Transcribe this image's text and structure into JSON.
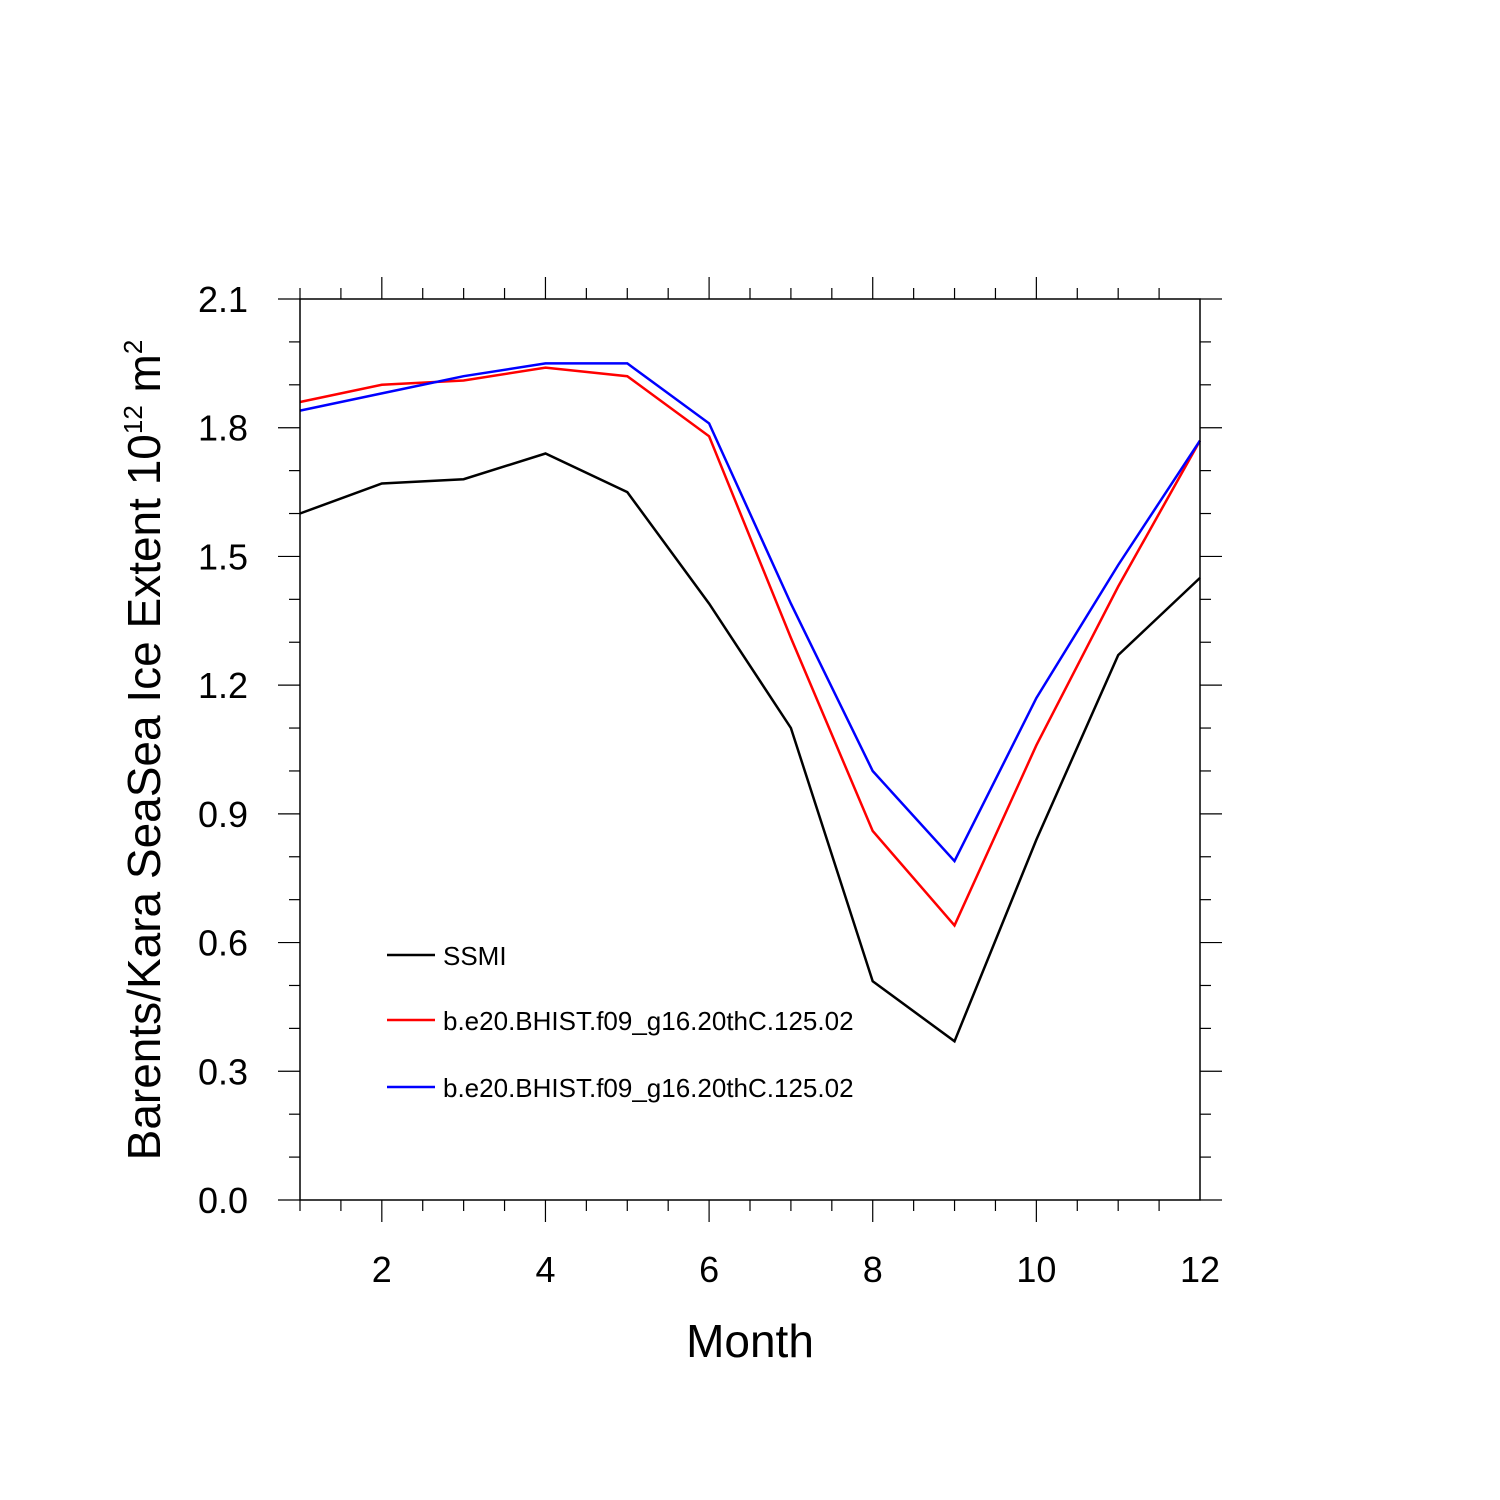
{
  "chart_data": {
    "type": "line",
    "xlabel": "Month",
    "ylabel": {
      "prefix": "Barents/Kara SeaSea Ice Extent 10",
      "superscript_1": "12",
      "middle": " m",
      "superscript_2": "2"
    },
    "xlim": [
      1,
      12
    ],
    "ylim": [
      0.0,
      2.1
    ],
    "xticks": [
      2,
      4,
      6,
      8,
      10,
      12
    ],
    "yticks": [
      "0.0",
      "0.3",
      "0.6",
      "0.9",
      "1.2",
      "1.5",
      "1.8",
      "2.1"
    ],
    "x": [
      1,
      2,
      3,
      4,
      5,
      6,
      7,
      8,
      9,
      10,
      11,
      12
    ],
    "series": [
      {
        "name": "SSMI",
        "color": "#000000",
        "values": [
          1.6,
          1.67,
          1.68,
          1.74,
          1.65,
          1.39,
          1.1,
          0.51,
          0.37,
          0.84,
          1.27,
          1.45
        ]
      },
      {
        "name": "b.e20.BHIST.f09_g16.20thC.125.02",
        "color": "#ff0000",
        "values": [
          1.86,
          1.9,
          1.91,
          1.94,
          1.92,
          1.78,
          1.31,
          0.86,
          0.64,
          1.06,
          1.43,
          1.77
        ]
      },
      {
        "name": "b.e20.BHIST.f09_g16.20thC.125.02",
        "color": "#0000ff",
        "values": [
          1.84,
          1.88,
          1.92,
          1.95,
          1.95,
          1.81,
          1.39,
          1.0,
          0.79,
          1.17,
          1.48,
          1.77
        ]
      }
    ],
    "legend_position": "bottom-left inside",
    "grid": false
  }
}
